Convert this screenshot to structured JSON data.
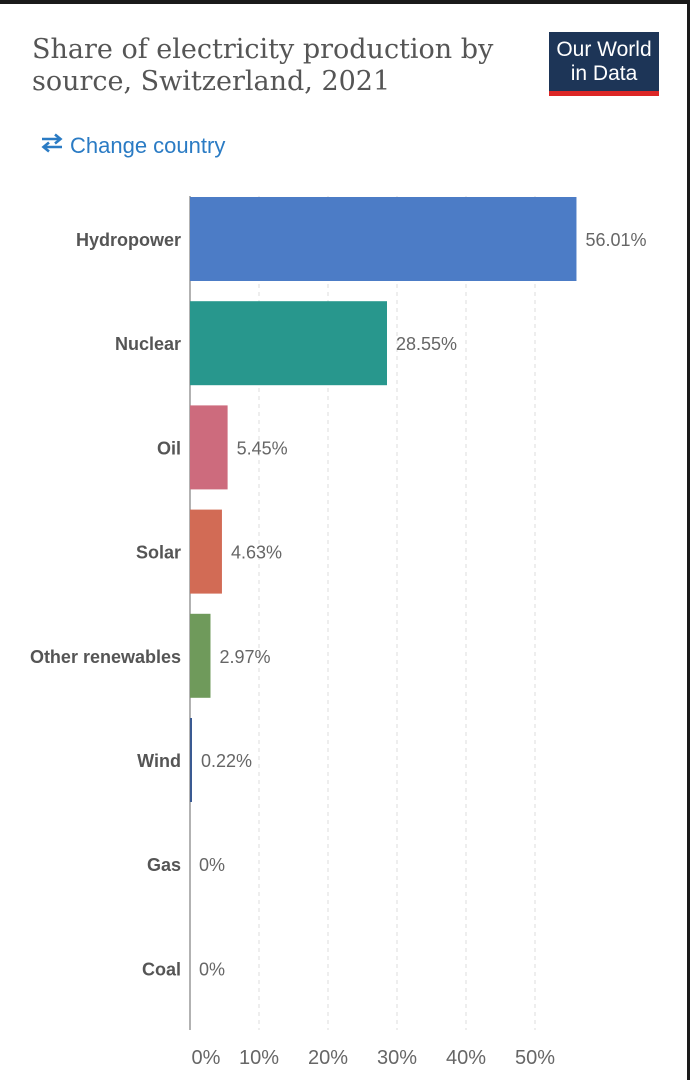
{
  "header": {
    "title": "Share of electricity production by source, Switzerland, 2021",
    "logo_line1": "Our World",
    "logo_line2": "in Data",
    "change_country_label": "Change country",
    "icon": "swap-arrows-icon"
  },
  "colors": {
    "accent": "#2a7bc4",
    "logo_bg": "#1d3557",
    "logo_bar": "#dc2626"
  },
  "chart_data": {
    "type": "bar",
    "orientation": "horizontal",
    "title": "Share of electricity production by source, Switzerland, 2021",
    "categories": [
      "Hydropower",
      "Nuclear",
      "Oil",
      "Solar",
      "Other renewables",
      "Wind",
      "Gas",
      "Coal"
    ],
    "values": [
      56.01,
      28.55,
      5.45,
      4.63,
      2.97,
      0.22,
      0,
      0
    ],
    "value_labels": [
      "56.01%",
      "28.55%",
      "5.45%",
      "4.63%",
      "2.97%",
      "0.22%",
      "0%",
      "0%"
    ],
    "colors": [
      "#4c7cc6",
      "#28978d",
      "#cd6b7d",
      "#d26b55",
      "#6f9a5b",
      "#3a5a92",
      "#999999",
      "#999999"
    ],
    "xlim": [
      0,
      56.01
    ],
    "xticks": [
      0,
      10,
      20,
      30,
      40,
      50
    ],
    "xtick_labels": [
      "0%",
      "10%",
      "20%",
      "30%",
      "40%",
      "50%"
    ],
    "grid": true
  }
}
